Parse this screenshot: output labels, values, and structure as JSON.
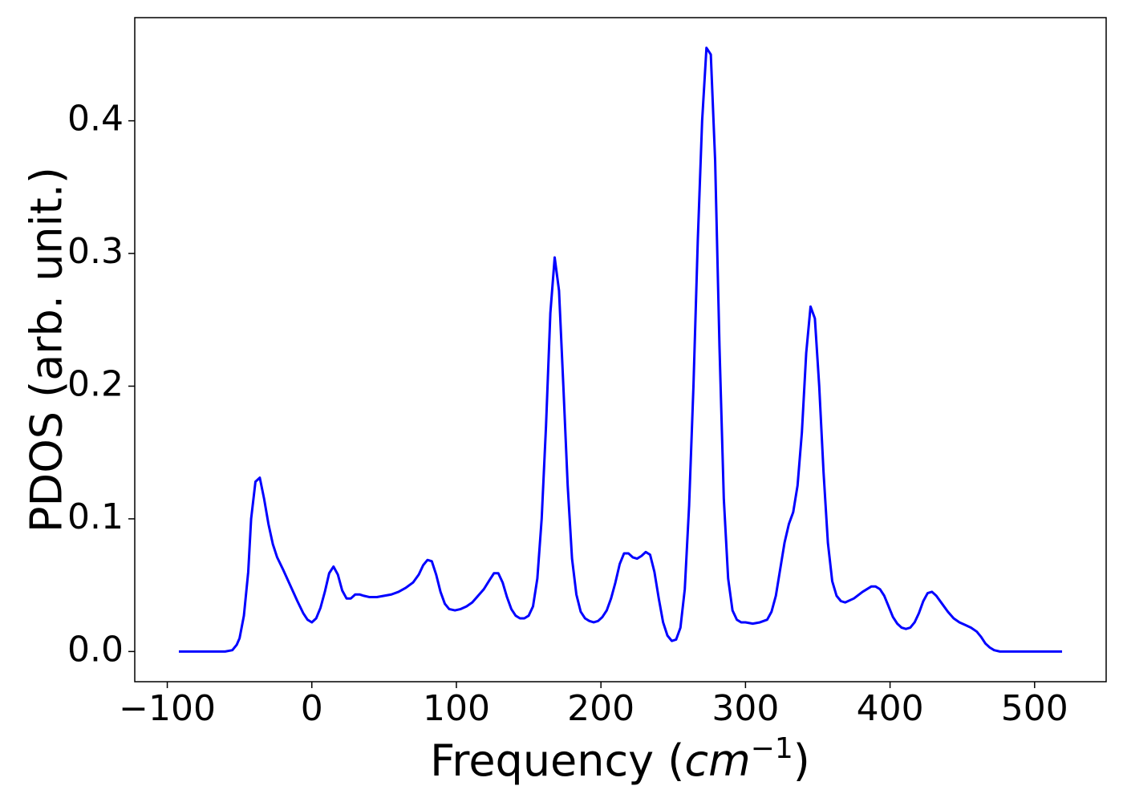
{
  "chart_data": {
    "type": "line",
    "ylabel": "PDOS (arb. unit.)",
    "xlabel": [
      "Frequency (",
      "cm",
      "−1",
      ")"
    ],
    "xlim": [
      -122.5,
      549.5
    ],
    "ylim": [
      -0.02275,
      0.47775
    ],
    "xticks": [
      {
        "value": -100,
        "label": "−100"
      },
      0,
      100,
      200,
      300,
      400,
      500
    ],
    "yticks": [
      {
        "value": 0,
        "label": "0.0"
      },
      0.1,
      0.2,
      0.3,
      0.4
    ],
    "series": [
      {
        "color": "#0000ff",
        "x": [
          -92,
          -60,
          -55,
          -52,
          -50,
          -47,
          -44,
          -42,
          -39,
          -36,
          -33,
          -30,
          -27,
          -24,
          -20,
          -15,
          -10,
          -6,
          -3,
          0,
          3,
          6,
          9,
          12,
          15,
          18,
          21,
          24,
          27,
          30,
          33,
          36,
          40,
          45,
          50,
          55,
          60,
          65,
          70,
          74,
          77,
          80,
          83,
          86,
          89,
          92,
          95,
          99,
          103,
          107,
          111,
          115,
          119,
          123,
          126,
          129,
          132,
          135,
          138,
          141,
          144,
          147,
          150,
          153,
          156,
          159,
          162,
          165,
          168,
          171,
          174,
          177,
          180,
          183,
          186,
          189,
          192,
          195,
          198,
          201,
          204,
          207,
          210,
          213,
          216,
          219,
          222,
          225,
          228,
          231,
          234,
          237,
          240,
          243,
          246,
          249,
          252,
          255,
          258,
          261,
          264,
          267,
          270,
          273,
          276,
          279,
          282,
          285,
          288,
          291,
          294,
          297,
          300,
          305,
          310,
          315,
          318,
          321,
          324,
          327,
          330,
          333,
          336,
          339,
          342,
          345,
          348,
          351,
          354,
          357,
          360,
          363,
          366,
          369,
          375,
          381,
          387,
          390,
          393,
          396,
          399,
          402,
          405,
          408,
          411,
          414,
          417,
          420,
          423,
          426,
          429,
          432,
          436,
          440,
          444,
          448,
          452,
          456,
          460,
          463,
          466,
          469,
          472,
          476,
          519
        ],
        "values": [
          0,
          0,
          0.001,
          0.005,
          0.01,
          0.027,
          0.06,
          0.1,
          0.128,
          0.131,
          0.115,
          0.096,
          0.081,
          0.071,
          0.062,
          0.05,
          0.038,
          0.029,
          0.024,
          0.022,
          0.025,
          0.033,
          0.045,
          0.059,
          0.064,
          0.058,
          0.046,
          0.04,
          0.04,
          0.043,
          0.043,
          0.042,
          0.041,
          0.041,
          0.042,
          0.043,
          0.045,
          0.048,
          0.052,
          0.058,
          0.065,
          0.069,
          0.068,
          0.058,
          0.045,
          0.036,
          0.032,
          0.031,
          0.032,
          0.034,
          0.037,
          0.042,
          0.047,
          0.054,
          0.059,
          0.059,
          0.052,
          0.041,
          0.032,
          0.027,
          0.025,
          0.025,
          0.027,
          0.034,
          0.055,
          0.1,
          0.17,
          0.255,
          0.297,
          0.272,
          0.2,
          0.125,
          0.07,
          0.043,
          0.03,
          0.025,
          0.023,
          0.022,
          0.023,
          0.026,
          0.031,
          0.04,
          0.052,
          0.066,
          0.074,
          0.074,
          0.071,
          0.07,
          0.072,
          0.075,
          0.073,
          0.06,
          0.04,
          0.022,
          0.012,
          0.008,
          0.009,
          0.018,
          0.047,
          0.11,
          0.2,
          0.31,
          0.4,
          0.455,
          0.45,
          0.37,
          0.23,
          0.115,
          0.055,
          0.031,
          0.024,
          0.022,
          0.022,
          0.021,
          0.022,
          0.024,
          0.03,
          0.042,
          0.062,
          0.082,
          0.096,
          0.105,
          0.125,
          0.165,
          0.225,
          0.26,
          0.251,
          0.2,
          0.135,
          0.082,
          0.053,
          0.042,
          0.038,
          0.037,
          0.04,
          0.045,
          0.049,
          0.049,
          0.047,
          0.042,
          0.034,
          0.026,
          0.021,
          0.018,
          0.017,
          0.018,
          0.022,
          0.029,
          0.038,
          0.044,
          0.045,
          0.042,
          0.036,
          0.03,
          0.025,
          0.022,
          0.02,
          0.018,
          0.015,
          0.011,
          0.006,
          0.003,
          0.001,
          0,
          0
        ]
      }
    ]
  }
}
